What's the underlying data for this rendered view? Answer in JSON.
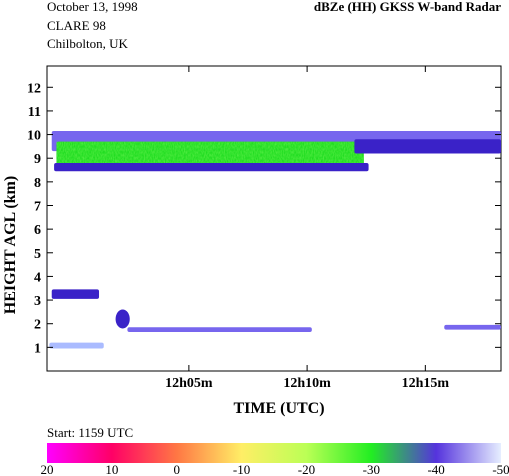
{
  "header": {
    "date": "October 13, 1998",
    "campaign": "CLARE 98",
    "site": "Chilbolton, UK",
    "title": "dBZe (HH)   GKSS  W-band Radar"
  },
  "start_label": "Start: 1159 UTC",
  "colors": {
    "cloud_green": "#22dd22",
    "cloud_green_light": "#55ee44",
    "echo_blue": "#3a22c8",
    "echo_lavender": "#7766ee",
    "echo_pale": "#aabbff",
    "echo_teal": "#11aa88"
  },
  "chart_data": {
    "type": "heatmap",
    "xlabel": "TIME (UTC)",
    "ylabel": "HEIGHT AGL (km)",
    "x_unit": "minutes after 1159 UTC",
    "x_tick_labels": [
      {
        "t": 6,
        "label": "12h05m"
      },
      {
        "t": 11,
        "label": "12h10m"
      },
      {
        "t": 16,
        "label": "12h15m"
      }
    ],
    "xlim": [
      0,
      19.2
    ],
    "y_ticks": [
      1,
      2,
      3,
      4,
      5,
      6,
      7,
      8,
      9,
      10,
      11,
      12
    ],
    "ylim": [
      0,
      12.9
    ],
    "colorbar": {
      "ticks": [
        20,
        10,
        0,
        -10,
        -20,
        -30,
        -40,
        -50
      ],
      "stops": [
        "#ff00ff",
        "#ff0066",
        "#ff7744",
        "#ffee66",
        "#bbff55",
        "#22ee22",
        "#5533dd",
        "#e6eeff"
      ]
    },
    "echo_regions": [
      {
        "name": "upper-cloud-top",
        "t0": 0.2,
        "t1": 19.2,
        "z0": 9.3,
        "z1": 10.15,
        "color": "echo_lavender"
      },
      {
        "name": "upper-cloud-core",
        "t0": 0.4,
        "t1": 13.4,
        "z0": 8.55,
        "z1": 9.7,
        "color": "cloud_green"
      },
      {
        "name": "upper-cloud-base",
        "t0": 0.3,
        "t1": 13.6,
        "z0": 8.45,
        "z1": 8.8,
        "color": "echo_blue"
      },
      {
        "name": "upper-cloud-tail",
        "t0": 13.0,
        "t1": 19.2,
        "z0": 9.2,
        "z1": 9.8,
        "color": "echo_blue"
      },
      {
        "name": "low-patch-3km",
        "t0": 0.2,
        "t1": 2.2,
        "z0": 3.05,
        "z1": 3.45,
        "color": "echo_blue"
      },
      {
        "name": "low-blob-2km",
        "t0": 2.9,
        "t1": 3.5,
        "z0": 1.8,
        "z1": 2.6,
        "color": "echo_blue"
      },
      {
        "name": "low-layer-1.8km",
        "t0": 3.4,
        "t1": 11.2,
        "z0": 1.65,
        "z1": 1.85,
        "color": "echo_lavender"
      },
      {
        "name": "surface-return",
        "t0": 0.1,
        "t1": 2.4,
        "z0": 0.95,
        "z1": 1.2,
        "color": "echo_pale"
      },
      {
        "name": "right-edge-echo",
        "t0": 16.8,
        "t1": 19.2,
        "z0": 1.75,
        "z1": 1.95,
        "color": "echo_lavender"
      }
    ]
  }
}
